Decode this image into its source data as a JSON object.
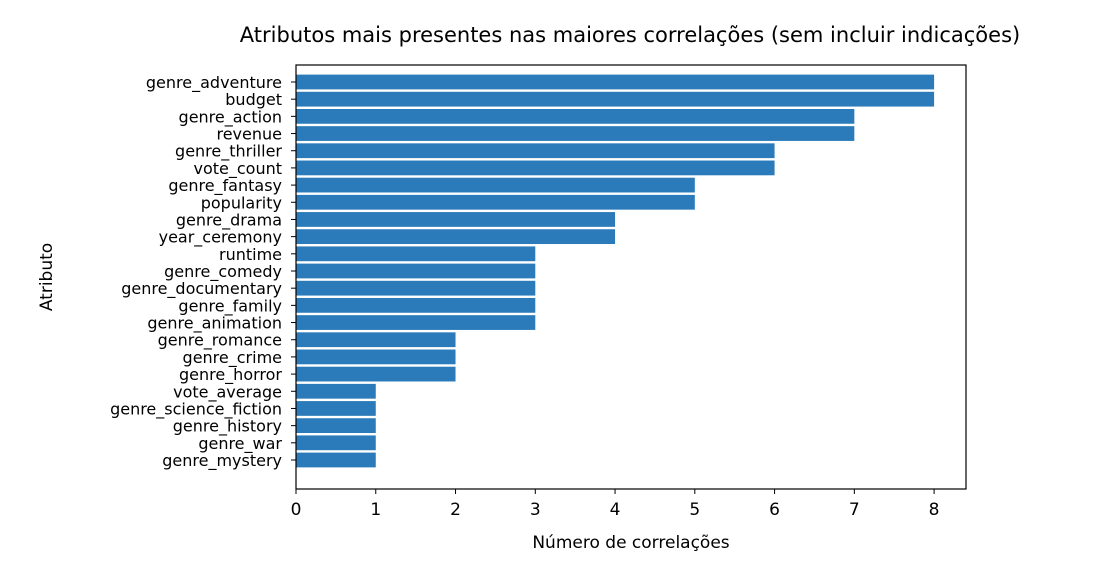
{
  "chart_data": {
    "type": "bar",
    "orientation": "horizontal",
    "title": "Atributos mais presentes nas maiores correlações (sem incluir indicações)",
    "xlabel": "Número de correlações",
    "ylabel": "Atributo",
    "xlim": [
      0,
      8.4
    ],
    "xticks": [
      "0",
      "1",
      "2",
      "3",
      "4",
      "5",
      "6",
      "7",
      "8"
    ],
    "grid": false,
    "bar_color": "#2b7bba",
    "categories": [
      "genre_adventure",
      "budget",
      "genre_action",
      "revenue",
      "genre_thriller",
      "vote_count",
      "genre_fantasy",
      "popularity",
      "genre_drama",
      "year_ceremony",
      "runtime",
      "genre_comedy",
      "genre_documentary",
      "genre_family",
      "genre_animation",
      "genre_romance",
      "genre_crime",
      "genre_horror",
      "vote_average",
      "genre_science_fiction",
      "genre_history",
      "genre_war",
      "genre_mystery"
    ],
    "values": [
      8,
      8,
      7,
      7,
      6,
      6,
      5,
      5,
      4,
      4,
      3,
      3,
      3,
      3,
      3,
      2,
      2,
      2,
      1,
      1,
      1,
      1,
      1
    ]
  }
}
